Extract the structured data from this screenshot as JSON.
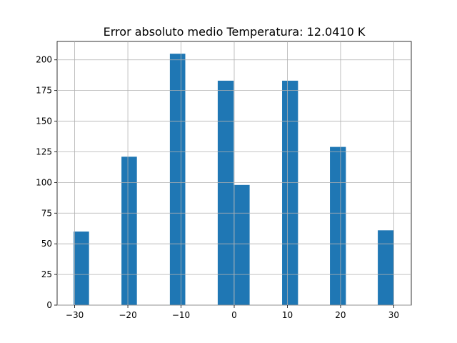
{
  "chart_data": {
    "type": "bar",
    "title": "Error absoluto medio Temperatura: 12.0410 K",
    "xlabel": "",
    "ylabel": "",
    "xlim": [
      -33.3,
      33.3
    ],
    "ylim": [
      0,
      215
    ],
    "grid": true,
    "bar_color": "#1f77b4",
    "x_ticks": [
      -30,
      -20,
      -10,
      0,
      10,
      20,
      30
    ],
    "x_tick_labels": [
      "−30",
      "−20",
      "−10",
      "0",
      "10",
      "20",
      "30"
    ],
    "y_ticks": [
      0,
      25,
      50,
      75,
      100,
      125,
      150,
      175,
      200
    ],
    "y_tick_labels": [
      "0",
      "25",
      "50",
      "75",
      "100",
      "125",
      "150",
      "175",
      "200"
    ],
    "bins": [
      {
        "x0": -30.2,
        "x1": -27.3,
        "value": 60
      },
      {
        "x0": -21.2,
        "x1": -18.3,
        "value": 121
      },
      {
        "x0": -12.1,
        "x1": -9.2,
        "value": 205
      },
      {
        "x0": -3.1,
        "x1": -0.1,
        "value": 183
      },
      {
        "x0": -0.1,
        "x1": 2.9,
        "value": 98
      },
      {
        "x0": 9.0,
        "x1": 12.0,
        "value": 183
      },
      {
        "x0": 18.0,
        "x1": 21.0,
        "value": 129
      },
      {
        "x0": 27.0,
        "x1": 30.0,
        "value": 61
      }
    ]
  }
}
